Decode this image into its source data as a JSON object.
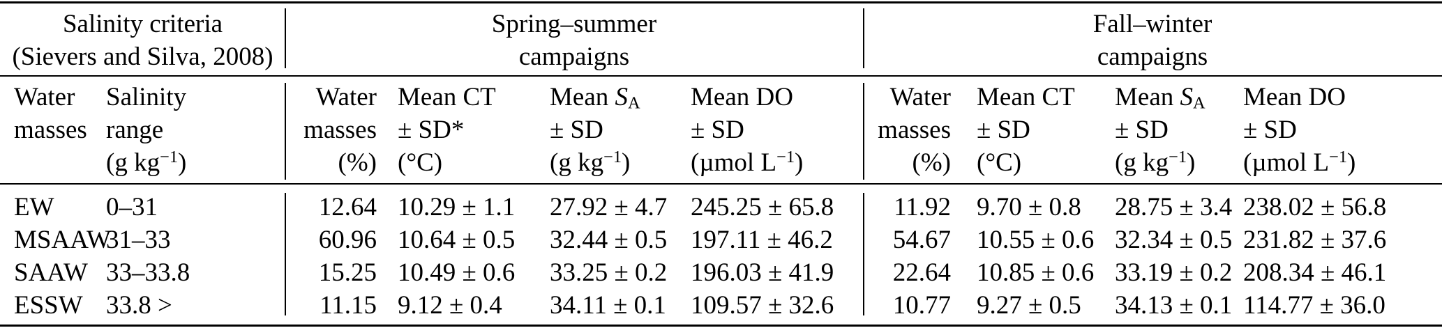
{
  "table": {
    "section_headers": {
      "criteria": {
        "line1": "Salinity criteria",
        "line2": "(Sievers and Silva, 2008)"
      },
      "spring": {
        "line1": "Spring–summer",
        "line2": "campaigns"
      },
      "fall": {
        "line1": "Fall–winter",
        "line2": "campaigns"
      }
    },
    "columns": [
      {
        "l1_pre": "Water",
        "l1_it": "",
        "l1_sub": "",
        "l2": "masses",
        "l3_pre": "",
        "l3_sup": "",
        "l3_post": ""
      },
      {
        "l1_pre": "Salinity",
        "l1_it": "",
        "l1_sub": "",
        "l2": "range",
        "l3_pre": "(g kg",
        "l3_sup": "−1",
        "l3_post": ")"
      },
      {
        "l1_pre": "Water",
        "l1_it": "",
        "l1_sub": "",
        "l2": "masses",
        "l3_pre": "(%)",
        "l3_sup": "",
        "l3_post": ""
      },
      {
        "l1_pre": "Mean CT",
        "l1_it": "",
        "l1_sub": "",
        "l2": "± SD*",
        "l3_pre": "(°C)",
        "l3_sup": "",
        "l3_post": ""
      },
      {
        "l1_pre": "Mean ",
        "l1_it": "S",
        "l1_sub": "A",
        "l2": "± SD",
        "l3_pre": "(g kg",
        "l3_sup": "−1",
        "l3_post": ")"
      },
      {
        "l1_pre": "Mean DO",
        "l1_it": "",
        "l1_sub": "",
        "l2": "± SD",
        "l3_pre": "(µmol L",
        "l3_sup": "−1",
        "l3_post": ")"
      },
      {
        "l1_pre": "Water",
        "l1_it": "",
        "l1_sub": "",
        "l2": "masses",
        "l3_pre": "(%)",
        "l3_sup": "",
        "l3_post": ""
      },
      {
        "l1_pre": "Mean CT",
        "l1_it": "",
        "l1_sub": "",
        "l2": "± SD",
        "l3_pre": "(°C)",
        "l3_sup": "",
        "l3_post": ""
      },
      {
        "l1_pre": "Mean ",
        "l1_it": "S",
        "l1_sub": "A",
        "l2": "± SD",
        "l3_pre": "(g kg",
        "l3_sup": "−1",
        "l3_post": ")"
      },
      {
        "l1_pre": "Mean DO",
        "l1_it": "",
        "l1_sub": "",
        "l2": "± SD",
        "l3_pre": "(µmol L",
        "l3_sup": "−1",
        "l3_post": ")"
      }
    ],
    "rows": [
      {
        "cells": [
          "EW",
          "0–31",
          "12.64",
          "10.29 ± 1.1",
          "27.92 ± 4.7",
          "245.25 ± 65.8",
          "11.92",
          "9.70 ± 0.8",
          "28.75 ± 3.4",
          "238.02 ± 56.8"
        ]
      },
      {
        "cells": [
          "MSAAW",
          "31–33",
          "60.96",
          "10.64 ± 0.5",
          "32.44 ± 0.5",
          "197.11 ± 46.2",
          "54.67",
          "10.55 ± 0.6",
          "32.34 ± 0.5",
          "231.82 ± 37.6"
        ]
      },
      {
        "cells": [
          "SAAW",
          "33–33.8",
          "15.25",
          "10.49 ± 0.6",
          "33.25 ± 0.2",
          "196.03 ± 41.9",
          "22.64",
          "10.85 ± 0.6",
          "33.19 ± 0.2",
          "208.34 ± 46.1"
        ]
      },
      {
        "cells": [
          "ESSW",
          "33.8 >",
          "11.15",
          "9.12 ± 0.4",
          "34.11 ± 0.1",
          "109.57 ± 32.6",
          "10.77",
          "9.27 ± 0.5",
          "34.13 ± 0.1",
          "114.77 ± 36.0"
        ]
      }
    ]
  }
}
